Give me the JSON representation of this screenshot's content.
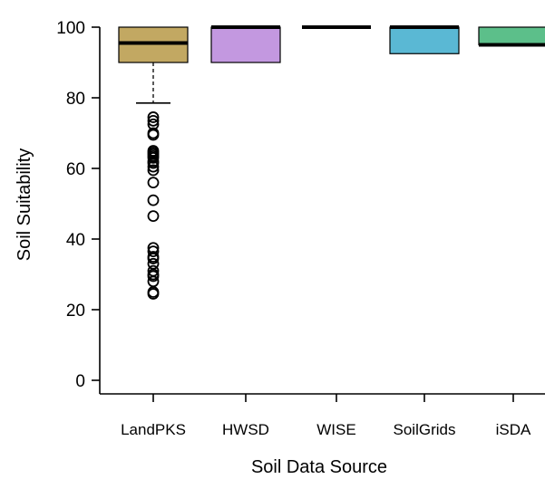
{
  "chart_data": {
    "type": "boxplot",
    "title": "",
    "xlabel": "Soil Data Source",
    "ylabel": "Soil Suitability",
    "ylim": [
      -5,
      105
    ],
    "yticks": [
      0,
      20,
      40,
      60,
      80,
      100
    ],
    "categories": [
      "LandPKS",
      "HWSD",
      "WISE",
      "SoilGrids",
      "iSDA"
    ],
    "grid": false,
    "legend": "none",
    "boxes": [
      {
        "category": "LandPKS",
        "color": "#c2a862",
        "q1": 90,
        "median": 95.5,
        "q3": 100,
        "whisker_low": 78.5,
        "whisker_high": 100,
        "outliers": [
          74.5,
          73.5,
          72.5,
          70,
          69.5,
          65,
          64.5,
          64,
          63.5,
          63,
          62,
          61.5,
          60.5,
          59.5,
          56,
          51,
          46.5,
          37.5,
          36.5,
          35,
          34.5,
          33,
          31,
          30,
          29.5,
          28,
          25,
          24.5
        ]
      },
      {
        "category": "HWSD",
        "color": "#c398e0",
        "q1": 90,
        "median": 100,
        "q3": 100,
        "whisker_low": 90,
        "whisker_high": 100,
        "outliers": []
      },
      {
        "category": "WISE",
        "color": "#000000",
        "q1": 100,
        "median": 100,
        "q3": 100,
        "whisker_low": 100,
        "whisker_high": 100,
        "outliers": []
      },
      {
        "category": "SoilGrids",
        "color": "#5ab8d4",
        "q1": 92.5,
        "median": 100,
        "q3": 100,
        "whisker_low": 92.5,
        "whisker_high": 100,
        "outliers": []
      },
      {
        "category": "iSDA",
        "color": "#5cbf8a",
        "q1": 95,
        "median": 95,
        "q3": 100,
        "whisker_low": 95,
        "whisker_high": 100,
        "outliers": []
      }
    ]
  }
}
